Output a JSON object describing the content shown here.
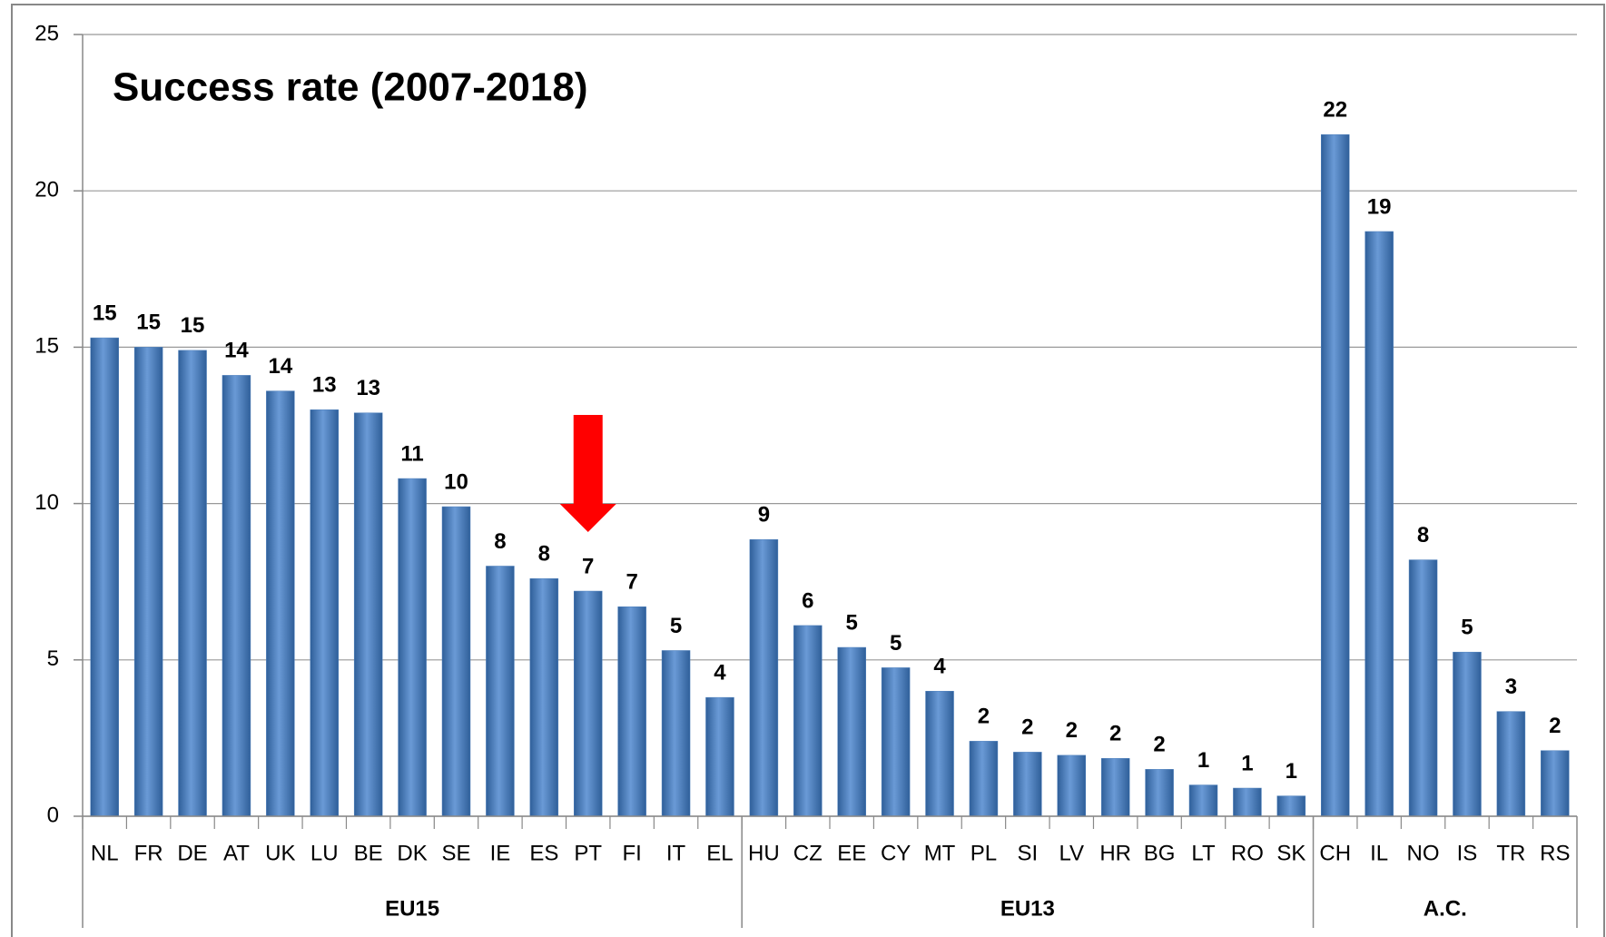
{
  "chart_data": {
    "type": "bar",
    "title": "Success rate (2007-2018)",
    "color": "#4f81bd",
    "ylim": [
      0,
      25
    ],
    "yticks": [
      0,
      5,
      10,
      15,
      20,
      25
    ],
    "grid": true,
    "groups": [
      {
        "name": "EU15",
        "categories": [
          "NL",
          "FR",
          "DE",
          "AT",
          "UK",
          "LU",
          "BE",
          "DK",
          "SE",
          "IE",
          "ES",
          "PT",
          "FI",
          "IT",
          "EL"
        ],
        "values": [
          15.3,
          15.0,
          14.9,
          14.1,
          13.6,
          13.0,
          12.9,
          10.8,
          9.9,
          8.0,
          7.6,
          7.2,
          6.7,
          5.3,
          3.8
        ],
        "value_labels": [
          "15",
          "15",
          "15",
          "14",
          "14",
          "13",
          "13",
          "11",
          "10",
          "8",
          "8",
          "7",
          "7",
          "5",
          "4"
        ]
      },
      {
        "name": "EU13",
        "categories": [
          "HU",
          "CZ",
          "EE",
          "CY",
          "MT",
          "PL",
          "SI",
          "LV",
          "HR",
          "BG",
          "LT",
          "RO",
          "SK"
        ],
        "values": [
          8.85,
          6.1,
          5.4,
          4.75,
          4.0,
          2.4,
          2.05,
          1.95,
          1.85,
          1.5,
          1.0,
          0.9,
          0.65
        ],
        "value_labels": [
          "9",
          "6",
          "5",
          "5",
          "4",
          "2",
          "2",
          "2",
          "2",
          "2",
          "1",
          "1",
          "1"
        ]
      },
      {
        "name": "A.C.",
        "categories": [
          "CH",
          "IL",
          "NO",
          "IS",
          "TR",
          "RS"
        ],
        "values": [
          21.8,
          18.7,
          8.2,
          5.25,
          3.35,
          2.1
        ],
        "value_labels": [
          "22",
          "19",
          "8",
          "5",
          "3",
          "2"
        ]
      }
    ]
  }
}
